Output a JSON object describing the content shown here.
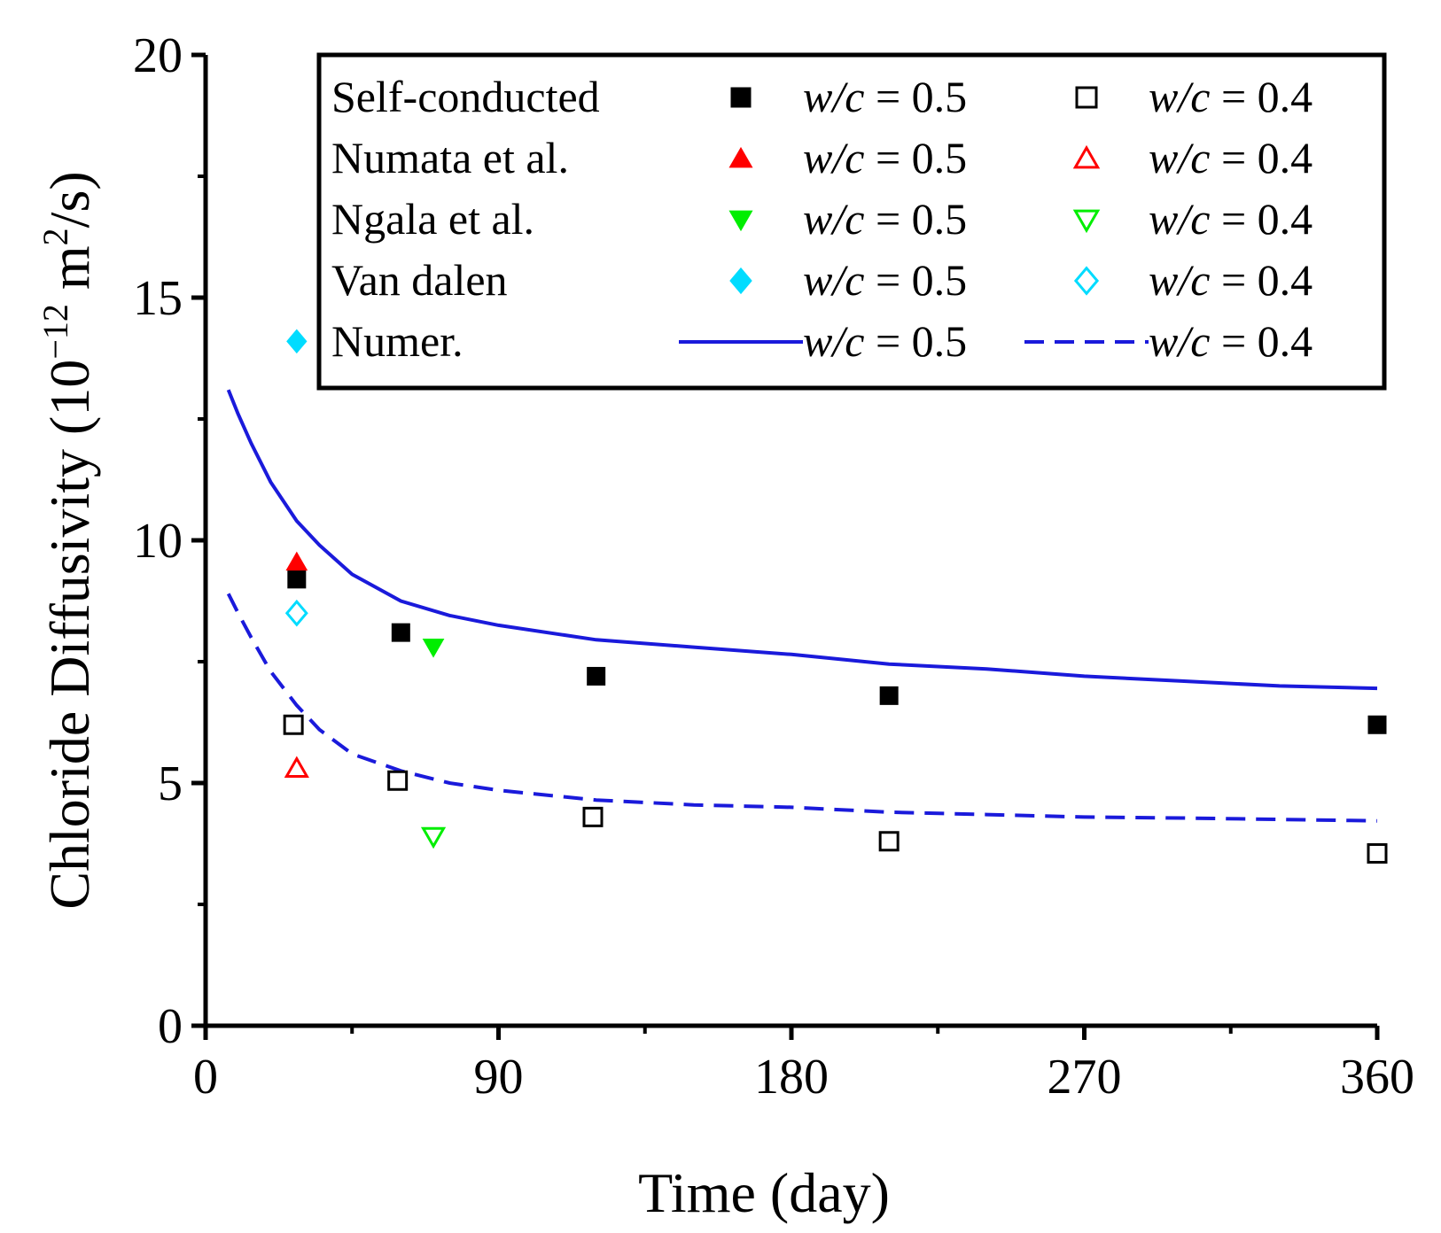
{
  "chart_data": {
    "type": "scatter",
    "xlabel": "Time (day)",
    "ylabel": "Chloride Diffusivity (10",
    "ylabel_exp": "−12",
    "ylabel_unit_m": " m",
    "ylabel_unit_sq": "2",
    "ylabel_tail": "/s)",
    "xlim": [
      0,
      360
    ],
    "ylim": [
      0,
      20
    ],
    "xticks": [
      "0",
      "90",
      "180",
      "270",
      "360"
    ],
    "yticks": [
      "0",
      "5",
      "10",
      "15",
      "20"
    ],
    "grid": false,
    "legend_position": "top-right",
    "legend": {
      "wc_italic": "w/c",
      "wc05": " = 0.5",
      "wc04": " = 0.4",
      "rows": [
        {
          "label": "Self-conducted",
          "color": "#000000",
          "shape05": "square",
          "shape04": "square"
        },
        {
          "label": "Numata et al.",
          "color": "#ff0000",
          "shape05": "triangle-up",
          "shape04": "triangle-up"
        },
        {
          "label": "Ngala et al.",
          "color": "#00ee00",
          "shape05": "triangle-down",
          "shape04": "triangle-down"
        },
        {
          "label": "Van dalen",
          "color": "#00dcff",
          "shape05": "diamond",
          "shape04": "diamond"
        },
        {
          "label": "Numer.",
          "color": "#1a1adb",
          "shape05": "line-solid",
          "shape04": "line-dashed"
        }
      ]
    },
    "series": [
      {
        "source": "Self-conducted",
        "wc": "0.5",
        "marker": "square",
        "filled": true,
        "color": "#000000",
        "points": [
          [
            28,
            9.2
          ],
          [
            60,
            8.1
          ],
          [
            120,
            7.2
          ],
          [
            210,
            6.8
          ],
          [
            360,
            6.2
          ]
        ]
      },
      {
        "source": "Self-conducted",
        "wc": "0.4",
        "marker": "square",
        "filled": false,
        "color": "#000000",
        "points": [
          [
            27,
            6.2
          ],
          [
            59,
            5.05
          ],
          [
            119,
            4.3
          ],
          [
            210,
            3.8
          ],
          [
            360,
            3.55
          ]
        ]
      },
      {
        "source": "Numata et al.",
        "wc": "0.5",
        "marker": "triangle-up",
        "filled": true,
        "color": "#ff0000",
        "points": [
          [
            28,
            9.55
          ]
        ]
      },
      {
        "source": "Numata et al.",
        "wc": "0.4",
        "marker": "triangle-up",
        "filled": false,
        "color": "#ff0000",
        "points": [
          [
            28,
            5.3
          ]
        ]
      },
      {
        "source": "Ngala et al.",
        "wc": "0.5",
        "marker": "triangle-down",
        "filled": true,
        "color": "#00ee00",
        "points": [
          [
            70,
            7.8
          ]
        ]
      },
      {
        "source": "Ngala et al.",
        "wc": "0.4",
        "marker": "triangle-down",
        "filled": false,
        "color": "#00ee00",
        "points": [
          [
            70,
            3.9
          ]
        ]
      },
      {
        "source": "Van dalen",
        "wc": "0.5",
        "marker": "diamond",
        "filled": true,
        "color": "#00dcff",
        "points": [
          [
            28,
            14.1
          ]
        ]
      },
      {
        "source": "Van dalen",
        "wc": "0.4",
        "marker": "diamond",
        "filled": false,
        "color": "#00dcff",
        "points": [
          [
            28,
            8.5
          ]
        ]
      }
    ],
    "lines": [
      {
        "source": "Numer.",
        "wc": "0.5",
        "style": "solid",
        "color": "#1a1adb",
        "points": [
          [
            7,
            13.1
          ],
          [
            10,
            12.6
          ],
          [
            14,
            12.0
          ],
          [
            20,
            11.2
          ],
          [
            28,
            10.4
          ],
          [
            35,
            9.9
          ],
          [
            45,
            9.3
          ],
          [
            60,
            8.75
          ],
          [
            75,
            8.45
          ],
          [
            90,
            8.25
          ],
          [
            120,
            7.95
          ],
          [
            150,
            7.8
          ],
          [
            180,
            7.65
          ],
          [
            210,
            7.45
          ],
          [
            240,
            7.35
          ],
          [
            270,
            7.2
          ],
          [
            300,
            7.1
          ],
          [
            330,
            7.0
          ],
          [
            360,
            6.95
          ]
        ]
      },
      {
        "source": "Numer.",
        "wc": "0.4",
        "style": "dashed",
        "color": "#1a1adb",
        "points": [
          [
            7,
            8.9
          ],
          [
            10,
            8.5
          ],
          [
            14,
            8.0
          ],
          [
            20,
            7.3
          ],
          [
            28,
            6.6
          ],
          [
            35,
            6.1
          ],
          [
            45,
            5.6
          ],
          [
            60,
            5.25
          ],
          [
            75,
            5.0
          ],
          [
            90,
            4.85
          ],
          [
            120,
            4.65
          ],
          [
            150,
            4.55
          ],
          [
            180,
            4.5
          ],
          [
            210,
            4.4
          ],
          [
            240,
            4.35
          ],
          [
            270,
            4.3
          ],
          [
            300,
            4.28
          ],
          [
            330,
            4.25
          ],
          [
            360,
            4.22
          ]
        ]
      }
    ]
  }
}
